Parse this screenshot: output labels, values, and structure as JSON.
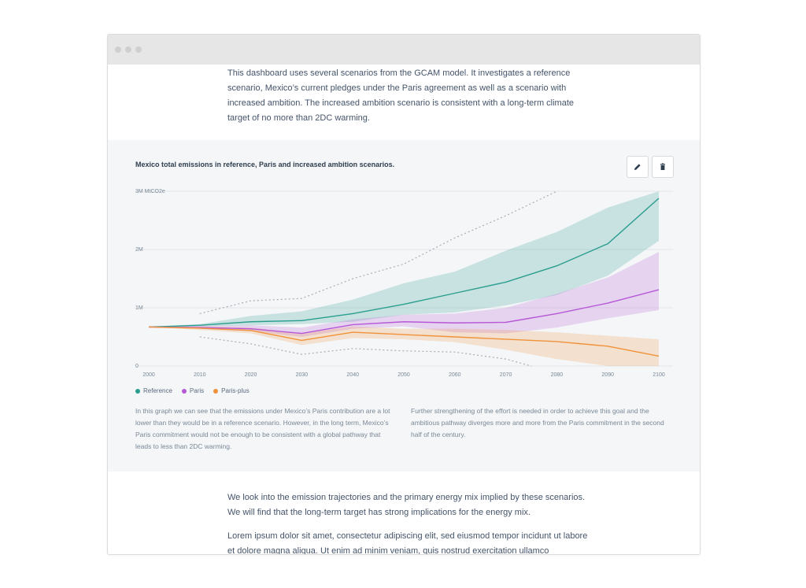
{
  "intro": {
    "text": "This dashboard uses several scenarios from the GCAM model. It investigates a reference scenario, Mexico’s current pledges under the Paris agreement as well as a scenario with increased ambition. The increased ambition scenario is consistent with a long-term climate target of no more than 2DC warming."
  },
  "toolbar": {
    "edit_icon": "pencil-icon",
    "delete_icon": "trash-icon"
  },
  "chart_data": {
    "type": "line",
    "title": "Mexico total emissions in reference, Paris and increased ambition scenarios.",
    "x": [
      2000,
      2010,
      2020,
      2030,
      2040,
      2050,
      2060,
      2070,
      2080,
      2090,
      2100
    ],
    "xtick_labels": [
      "2000",
      "2010",
      "2020",
      "2030",
      "2040",
      "2050",
      "2060",
      "2070",
      "2080",
      "2090",
      "2100"
    ],
    "ytick_labels": [
      "0",
      "1M",
      "2M",
      "3M MtCO2e"
    ],
    "yticks": [
      0,
      1000000,
      2000000,
      3000000
    ],
    "ylim": [
      0,
      3000000
    ],
    "xlim": [
      2000,
      2100
    ],
    "grid": true,
    "legend_position": "bottom-left",
    "series": [
      {
        "name": "Reference",
        "color": "#2a9d8f",
        "values": [
          670000,
          700000,
          760000,
          780000,
          900000,
          1060000,
          1250000,
          1440000,
          1720000,
          2100000,
          2880000
        ],
        "band_low": [
          670000,
          680000,
          700000,
          720000,
          760000,
          880000,
          920000,
          1040000,
          1220000,
          1550000,
          2150000
        ],
        "band_high": [
          670000,
          720000,
          860000,
          940000,
          1140000,
          1420000,
          1620000,
          1980000,
          2300000,
          2720000,
          3000000
        ]
      },
      {
        "name": "Paris",
        "color": "#b658d6",
        "values": [
          670000,
          660000,
          640000,
          560000,
          710000,
          760000,
          740000,
          750000,
          900000,
          1080000,
          1310000
        ],
        "band_low": [
          670000,
          640000,
          600000,
          500000,
          640000,
          680000,
          580000,
          560000,
          660000,
          820000,
          960000
        ],
        "band_high": [
          670000,
          690000,
          700000,
          660000,
          800000,
          880000,
          900000,
          1000000,
          1240000,
          1520000,
          1960000
        ]
      },
      {
        "name": "Paris-plus",
        "color": "#f0923a",
        "values": [
          670000,
          650000,
          610000,
          440000,
          580000,
          540000,
          500000,
          460000,
          420000,
          340000,
          170000
        ],
        "band_low": [
          670000,
          620000,
          560000,
          360000,
          480000,
          460000,
          410000,
          280000,
          120000,
          0,
          0
        ],
        "band_high": [
          670000,
          680000,
          660000,
          560000,
          680000,
          640000,
          640000,
          620000,
          580000,
          520000,
          460000
        ]
      }
    ],
    "bounds": {
      "color": "#a7aeb5",
      "upper": [
        900000,
        1120000,
        1160000,
        1500000,
        1750000,
        2200000,
        2580000,
        3000000,
        null,
        null,
        null
      ],
      "upper_x": [
        2010,
        2020,
        2030,
        2040,
        2050,
        2060,
        2070,
        2080
      ],
      "lower": [
        500000,
        380000,
        200000,
        300000,
        260000,
        240000,
        120000,
        0
      ],
      "lower_x": [
        2010,
        2020,
        2030,
        2040,
        2050,
        2060,
        2070,
        2075
      ]
    }
  },
  "legend": [
    {
      "label": "Reference",
      "color": "#2a9d8f"
    },
    {
      "label": "Paris",
      "color": "#b658d6"
    },
    {
      "label": "Paris-plus",
      "color": "#f0923a"
    }
  ],
  "notes": {
    "left": "In this graph we can see that the emissions under Mexico’s Paris contribution are a lot lower than they would be in a reference scenario. However, in the long term, Mexico’s Paris commitment would not be enough to be consistent with a global pathway that leads to less than 2DC warming.",
    "right": "Further strengthening of the effort is needed in order to achieve this goal and the ambitious pathway diverges more and more from the Paris commitment in the second half of the century."
  },
  "outro": {
    "p1": "We look into the emission trajectories and the primary energy mix implied by these scenarios. We will find that the long-term target has strong implications for the energy mix.",
    "p2": "Lorem ipsum dolor sit amet, consectetur adipiscing elit, sed eiusmod tempor incidunt ut labore et dolore magna aliqua. Ut enim ad minim veniam, quis nostrud exercitation ullamco"
  }
}
